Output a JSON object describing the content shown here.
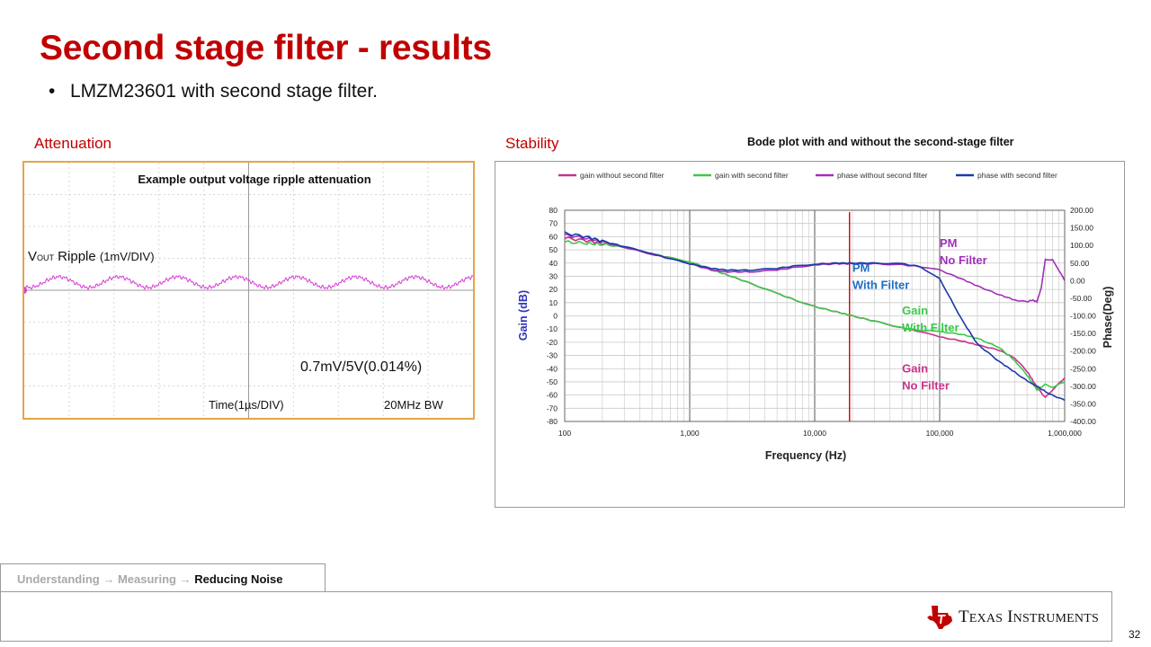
{
  "slide": {
    "title": "Second stage filter - results",
    "bullet": "LMZM23601 with second stage filter.",
    "page_number": "32",
    "accent_color": "#c00000"
  },
  "attenuation": {
    "label": "Attenuation",
    "scope_title": "Example output voltage ripple attenuation",
    "ripple_main": "V",
    "ripple_sub": "OUT",
    "ripple_rest": " Ripple ",
    "ripple_scale": "(1mV/DIV)",
    "measurement": "0.7mV/5V(0.014%)",
    "time_label": "Time(1µs/DIV)",
    "bandwidth": "20MHz BW",
    "trace_color": "#d63cd6"
  },
  "stability": {
    "label": "Stability",
    "chart_title": "Bode plot with and without the second-stage filter"
  },
  "chart_data": {
    "type": "line",
    "xlabel": "Frequency (Hz)",
    "ylabel": "Gain (dB)",
    "y2label": "Phase(Deg)",
    "xscale": "log",
    "xlim": [
      100,
      1000000
    ],
    "ylim": [
      -80,
      80
    ],
    "y2lim": [
      -400,
      200
    ],
    "grid": true,
    "legend_position": "top",
    "x_tick_labels": [
      "100",
      "1,000",
      "10,000",
      "100,000",
      "1,000,000"
    ],
    "y_tick_labels": [
      "80",
      "70",
      "60",
      "50",
      "40",
      "30",
      "20",
      "10",
      "0",
      "-10",
      "-20",
      "-30",
      "-40",
      "-50",
      "-60",
      "-70",
      "-80"
    ],
    "y2_tick_labels": [
      "200.00",
      "150.00",
      "100.00",
      "50.00",
      "0.00",
      "-50.00",
      "-100.00",
      "-150.00",
      "-200.00",
      "-250.00",
      "-300.00",
      "-350.00",
      "-400.00"
    ],
    "crossover_marker_hz": 19000,
    "series": [
      {
        "name": "gain without second filter",
        "axis": "left",
        "color": "#c8328c",
        "x": [
          100,
          150,
          200,
          300,
          500,
          700,
          1000,
          1500,
          2000,
          3000,
          5000,
          7000,
          10000,
          15000,
          20000,
          30000,
          50000,
          70000,
          100000,
          150000,
          200000,
          300000,
          400000,
          500000,
          600000,
          700000,
          800000,
          1000000
        ],
        "y": [
          59,
          57,
          55,
          52,
          47,
          44,
          41,
          35,
          31,
          25,
          17,
          12,
          7,
          3,
          0,
          -4,
          -9,
          -12,
          -16,
          -19,
          -22,
          -26,
          -32,
          -42,
          -54,
          -62,
          -56,
          -47
        ]
      },
      {
        "name": "gain with second filter",
        "axis": "left",
        "color": "#3cc84a",
        "x": [
          100,
          150,
          200,
          300,
          500,
          700,
          1000,
          1500,
          2000,
          3000,
          5000,
          7000,
          10000,
          15000,
          20000,
          30000,
          50000,
          70000,
          100000,
          150000,
          200000,
          300000,
          400000,
          500000,
          600000,
          700000,
          800000,
          1000000
        ],
        "y": [
          56,
          55,
          54,
          52,
          47,
          44,
          41,
          35,
          31,
          25,
          17,
          12,
          7,
          3,
          0,
          -4,
          -9,
          -11,
          -12,
          -14,
          -17,
          -24,
          -34,
          -45,
          -56,
          -52,
          -54,
          -50
        ]
      },
      {
        "name": "phase without second filter",
        "axis": "right",
        "color": "#a030b8",
        "x": [
          100,
          150,
          200,
          300,
          500,
          700,
          1000,
          1500,
          2000,
          3000,
          5000,
          7000,
          10000,
          15000,
          20000,
          30000,
          50000,
          70000,
          100000,
          150000,
          200000,
          300000,
          400000,
          500000,
          550000,
          600000,
          650000,
          700000,
          800000,
          900000,
          1000000
        ],
        "y": [
          130,
          120,
          110,
          95,
          75,
          62,
          48,
          30,
          25,
          25,
          30,
          38,
          45,
          48,
          48,
          48,
          45,
          40,
          30,
          5,
          -15,
          -40,
          -55,
          -60,
          -55,
          -60,
          -20,
          60,
          60,
          30,
          0
        ]
      },
      {
        "name": "phase with second filter",
        "axis": "right",
        "color": "#1a3aa8",
        "x": [
          100,
          150,
          200,
          300,
          500,
          700,
          1000,
          1500,
          2000,
          3000,
          5000,
          7000,
          10000,
          15000,
          20000,
          30000,
          50000,
          70000,
          100000,
          150000,
          200000,
          300000,
          400000,
          500000,
          600000,
          700000,
          800000,
          1000000
        ],
        "y": [
          135,
          125,
          112,
          97,
          77,
          62,
          48,
          35,
          30,
          30,
          35,
          42,
          47,
          50,
          50,
          50,
          48,
          40,
          5,
          -110,
          -180,
          -230,
          -260,
          -285,
          -300,
          -315,
          -325,
          -340
        ]
      }
    ],
    "annotations": [
      {
        "line1": "PM",
        "line2": "No Filter",
        "color": "#a030b8",
        "at_hz": 100000,
        "at_deg": 95
      },
      {
        "line1": "PM",
        "line2": "With Filter",
        "color": "#1e6ec8",
        "at_hz": 20000,
        "at_deg": 25
      },
      {
        "line1": "Gain",
        "line2": "With Filter",
        "color": "#3cc84a",
        "at_hz": 50000,
        "at_db": 1
      },
      {
        "line1": "Gain",
        "line2": "No Filter",
        "color": "#c8328c",
        "at_hz": 50000,
        "at_db": -43
      }
    ]
  },
  "breadcrumb": {
    "step1": "Understanding",
    "arrow1": " → ",
    "step2": "Measuring",
    "arrow2": " → ",
    "current": "Reducing Noise"
  },
  "logo": {
    "text": "Texas Instruments",
    "icon": "texas-state-icon",
    "color": "#c00000"
  }
}
